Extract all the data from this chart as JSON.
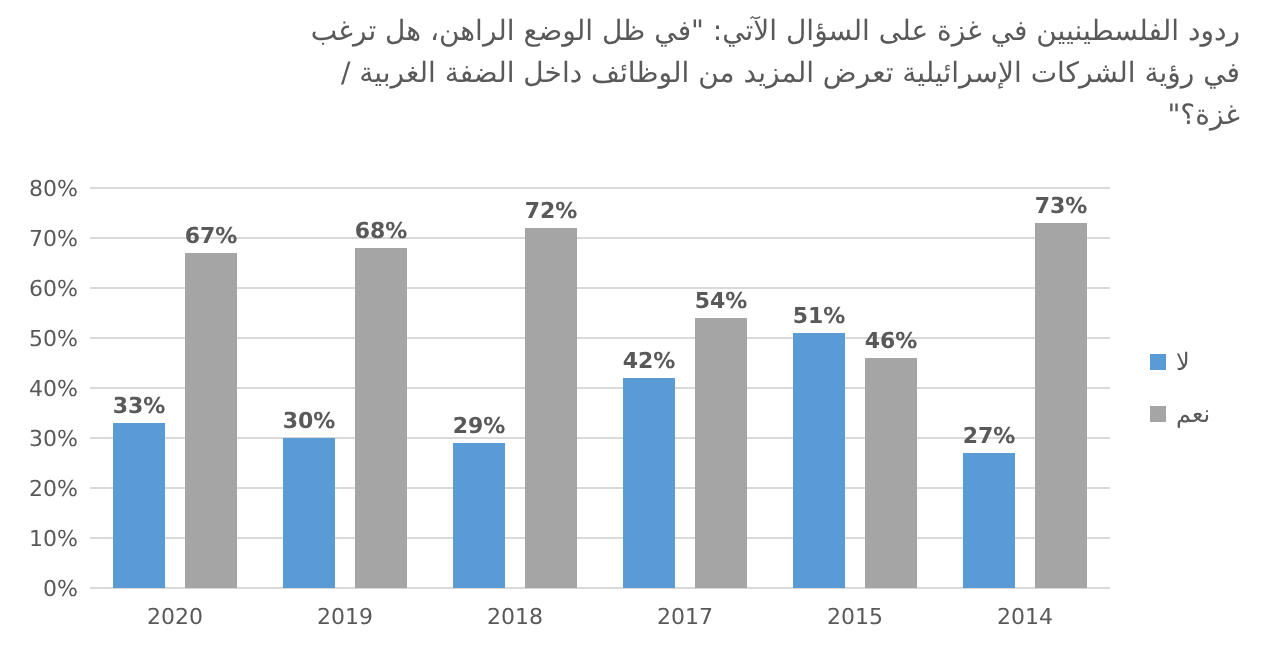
{
  "chart_data": {
    "type": "bar",
    "title": "ردود الفلسطينيين في غزة على السؤال الآتي: \"في ظل الوضع الراهن، هل ترغب في رؤية الشركات الإسرائيلية تعرض المزيد من الوظائف داخل الضفة الغربية / غزة؟\"",
    "categories": [
      "2020",
      "2019",
      "2018",
      "2017",
      "2015",
      "2014"
    ],
    "series": [
      {
        "name": "لا",
        "color": "#5b9bd5",
        "values": [
          33,
          30,
          29,
          42,
          51,
          27
        ],
        "value_labels": [
          "33%",
          "30%",
          "29%",
          "42%",
          "51%",
          "27%"
        ]
      },
      {
        "name": "نعم",
        "color": "#a5a5a5",
        "values": [
          67,
          68,
          72,
          54,
          46,
          73
        ],
        "value_labels": [
          "67%",
          "68%",
          "72%",
          "54%",
          "46%",
          "73%"
        ]
      }
    ],
    "ylim": [
      0,
      80
    ],
    "yticks": [
      {
        "value": 0,
        "label": "0%"
      },
      {
        "value": 10,
        "label": "10%"
      },
      {
        "value": 20,
        "label": "20%"
      },
      {
        "value": 30,
        "label": "30%"
      },
      {
        "value": 40,
        "label": "40%"
      },
      {
        "value": 50,
        "label": "50%"
      },
      {
        "value": 60,
        "label": "60%"
      },
      {
        "value": 70,
        "label": "70%"
      },
      {
        "value": 80,
        "label": "80%"
      }
    ],
    "grid": "y",
    "legend": "right"
  }
}
